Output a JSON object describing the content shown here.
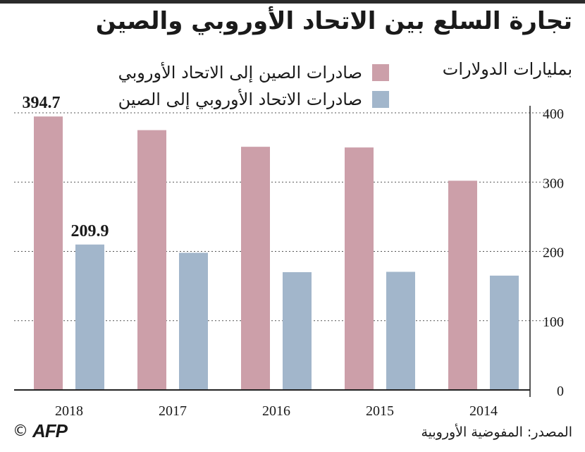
{
  "title": "تجارة السلع بين الاتحاد الأوروبي والصين",
  "units": "بمليارات الدولارات",
  "source": "المصدر: المفوضية الأوروبية",
  "logo": {
    "copyright": "©",
    "text": "AFP"
  },
  "colors": {
    "china_exports": "#cc9fa9",
    "eu_exports": "#a2b6cb",
    "axis": "#222222",
    "grid": "#555555"
  },
  "chart_data": {
    "type": "bar",
    "categories": [
      "2018",
      "2017",
      "2016",
      "2015",
      "2014"
    ],
    "series": [
      {
        "name": "صادرات الصين إلى الاتحاد الأوروبي",
        "values": [
          394.7,
          375.0,
          351.0,
          350.0,
          302.0
        ],
        "data_labels": [
          "394.7",
          null,
          null,
          null,
          null
        ]
      },
      {
        "name": "صادرات الاتحاد الأوروبي إلى الصين",
        "values": [
          209.9,
          198.0,
          170.0,
          170.5,
          165.0
        ],
        "data_labels": [
          "209.9",
          null,
          null,
          null,
          null
        ]
      }
    ],
    "ylim": [
      0,
      400
    ],
    "yticks": [
      0,
      100,
      200,
      300,
      400
    ],
    "grid": true,
    "legend": "top"
  }
}
